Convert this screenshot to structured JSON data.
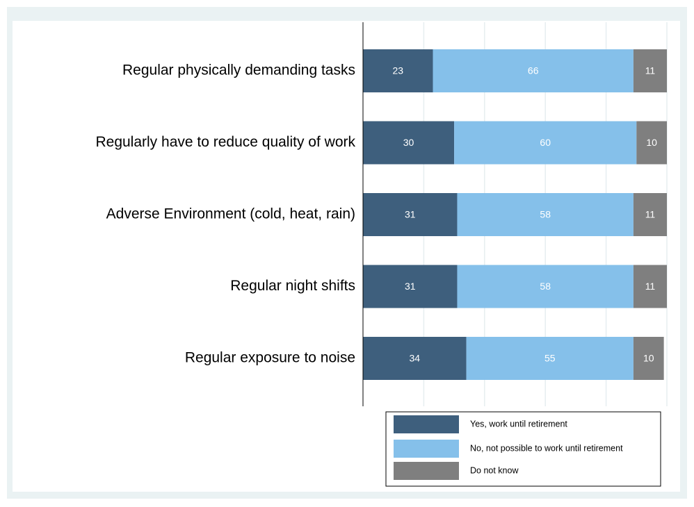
{
  "chart_data": {
    "type": "stacked-barh",
    "categories": [
      "Regular physically demanding tasks",
      "Regularly have to reduce quality of work",
      "Adverse Environment (cold, heat, rain)",
      "Regular night shifts",
      "Regular exposure to noise"
    ],
    "series": [
      {
        "name": "Yes, work until retirement",
        "color": "#3e5f7d",
        "values": [
          23,
          30,
          31,
          31,
          34
        ]
      },
      {
        "name": "No, not possible to work until retirement",
        "color": "#85c0ea",
        "values": [
          66,
          60,
          58,
          58,
          55
        ]
      },
      {
        "name": "Do not know",
        "color": "#7f7f7f",
        "values": [
          11,
          10,
          11,
          11,
          10
        ]
      }
    ],
    "xlim": [
      0,
      100
    ],
    "grid": true
  }
}
